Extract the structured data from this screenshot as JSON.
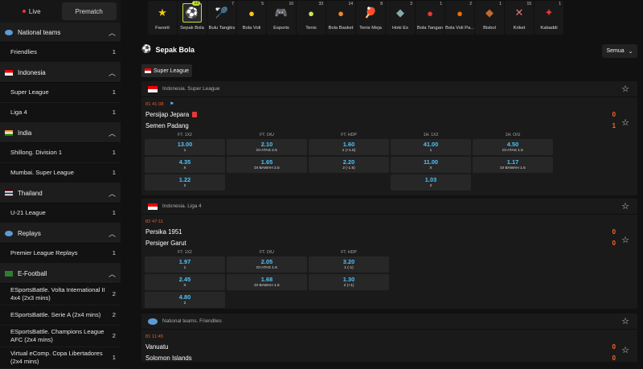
{
  "sidebar": {
    "tabs": [
      {
        "label": "Live"
      },
      {
        "label": "Prematch"
      }
    ],
    "groups": [
      {
        "name": "National teams",
        "flag": "globe",
        "leagues": [
          {
            "name": "Friendlies",
            "count": "1"
          }
        ]
      },
      {
        "name": "Indonesia",
        "flag": "id",
        "leagues": [
          {
            "name": "Super League",
            "count": "1"
          },
          {
            "name": "Liga 4",
            "count": "1"
          }
        ]
      },
      {
        "name": "India",
        "flag": "in",
        "leagues": [
          {
            "name": "Shillong. Division 1",
            "count": "1"
          },
          {
            "name": "Mumbai. Super League",
            "count": "1"
          }
        ]
      },
      {
        "name": "Thailand",
        "flag": "th",
        "leagues": [
          {
            "name": "U-21 League",
            "count": "1"
          }
        ]
      },
      {
        "name": "Replays",
        "flag": "globe",
        "leagues": [
          {
            "name": "Premier League Replays",
            "count": "1"
          }
        ]
      },
      {
        "name": "E-Football",
        "flag": "ef",
        "leagues": [
          {
            "name": "ESportsBattle. Volta International II 4x4 (2x3 mins)",
            "count": "2"
          },
          {
            "name": "ESportsBattle. Serie A (2x4 mins)",
            "count": "2"
          },
          {
            "name": "ESportsBattle. Champions League AFC (2x4 mins)",
            "count": "2"
          },
          {
            "name": "Virtual eComp. Copa Libertadores (2x4 mins)",
            "count": "1"
          }
        ]
      }
    ]
  },
  "sports": [
    {
      "label": "Favorit",
      "count": "",
      "icon": "star-icon"
    },
    {
      "label": "Sepak Bola",
      "count": "13",
      "icon": "soccer-ball-icon",
      "selected": true
    },
    {
      "label": "Bulu Tangkis",
      "count": "7",
      "icon": "shuttlecock-icon"
    },
    {
      "label": "Bola Voli",
      "count": "5",
      "icon": "volleyball-icon"
    },
    {
      "label": "Esports",
      "count": "10",
      "icon": "gamepad-icon"
    },
    {
      "label": "Tenis",
      "count": "33",
      "icon": "tennis-ball-icon"
    },
    {
      "label": "Bola Basket",
      "count": "14",
      "icon": "basketball-icon"
    },
    {
      "label": "Tenis Meja",
      "count": "8",
      "icon": "table-tennis-icon"
    },
    {
      "label": "Hoki Es",
      "count": "3",
      "icon": "ice-hockey-icon"
    },
    {
      "label": "Bola Tangan",
      "count": "1",
      "icon": "handball-icon"
    },
    {
      "label": "Bola Voli Pa...",
      "count": "2",
      "icon": "beach-volleyball-icon"
    },
    {
      "label": "Bisbol",
      "count": "1",
      "icon": "baseball-icon"
    },
    {
      "label": "Kriket",
      "count": "15",
      "icon": "cricket-icon"
    },
    {
      "label": "Kabaddi",
      "count": "1",
      "icon": "kabaddi-icon"
    }
  ],
  "section": {
    "title": "Sepak Bola",
    "filter_label": "Semua",
    "league_chip": "Super League"
  },
  "matches": [
    {
      "league": "Indonesia. Super League",
      "flag": "id",
      "time": "81 41:38",
      "home": "Persijap Jepara",
      "away": "Semen Padang",
      "home_score": "0",
      "away_score": "1",
      "headers": [
        "FT. 1X2",
        "FT. O/U",
        "FT. HDP",
        "1H. 1X2",
        "1H. O/U"
      ],
      "odds": [
        [
          {
            "v": "13.00",
            "l": "1"
          },
          {
            "v": "2.10",
            "l": "DI ATAS 2.5"
          },
          {
            "v": "1.60",
            "l": "1 (+1.5)"
          },
          {
            "v": "41.00",
            "l": "1"
          },
          {
            "v": "4.50",
            "l": "DI ATAS 1.5"
          }
        ],
        [
          {
            "v": "4.35",
            "l": "X"
          },
          {
            "v": "1.65",
            "l": "DI BAWAH 2.5"
          },
          {
            "v": "2.20",
            "l": "2 (-1.5)"
          },
          {
            "v": "11.00",
            "l": "X"
          },
          {
            "v": "1.17",
            "l": "DI BAWAH 1.5"
          }
        ],
        [
          {
            "v": "1.22",
            "l": "2"
          },
          null,
          null,
          {
            "v": "1.03",
            "l": "2"
          },
          null
        ]
      ]
    },
    {
      "league": "Indonesia. Liga 4",
      "flag": "id",
      "time": "82 47:11",
      "home": "Persika 1951",
      "away": "Persiger Garut",
      "home_score": "0",
      "away_score": "0",
      "headers": [
        "FT. 1X2",
        "FT. O/U",
        "FT. HDP"
      ],
      "odds": [
        [
          {
            "v": "1.97",
            "l": "1"
          },
          {
            "v": "2.05",
            "l": "DI ATAS 1.5"
          },
          {
            "v": "3.20",
            "l": "1 (-1)"
          }
        ],
        [
          {
            "v": "2.45",
            "l": "X"
          },
          {
            "v": "1.68",
            "l": "DI BAWAH 1.5"
          },
          {
            "v": "1.30",
            "l": "2 (+1)"
          }
        ],
        [
          {
            "v": "4.80",
            "l": "2"
          },
          null,
          null
        ]
      ]
    },
    {
      "league": "National teams. Friendlies",
      "flag": "globe",
      "time": "81 11:45",
      "home": "Vanuatu",
      "away": "Solomon Islands",
      "home_score": "0",
      "away_score": "0"
    }
  ]
}
